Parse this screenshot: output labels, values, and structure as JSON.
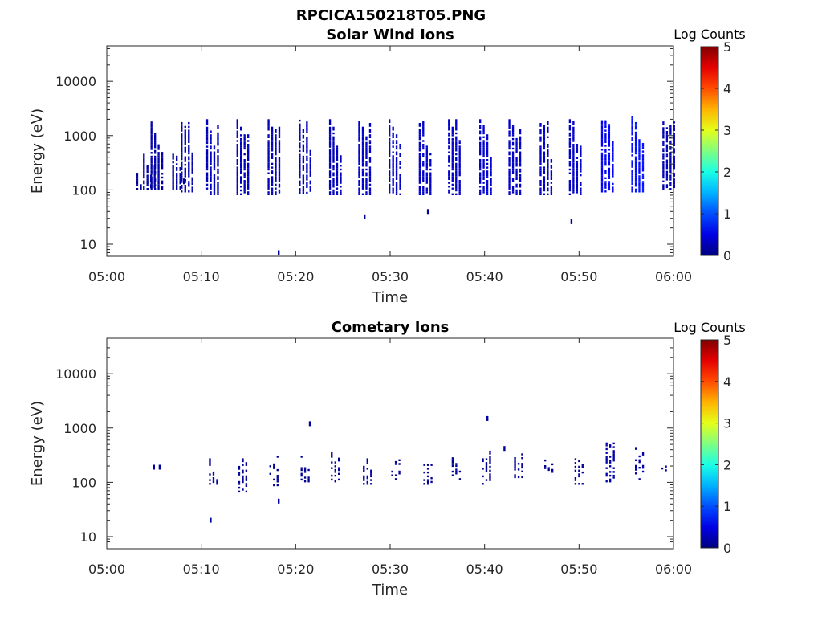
{
  "figure_title": "RPCICA150218T05.PNG",
  "chart_data": [
    {
      "type": "heatmap",
      "title": "Solar Wind Ions",
      "xlabel": "Time",
      "ylabel": "Energy (eV)",
      "x_ticks": [
        "05:00",
        "05:10",
        "05:20",
        "05:30",
        "05:40",
        "05:50",
        "06:00"
      ],
      "xlim_minutes": [
        0,
        60
      ],
      "y_scale": "log",
      "y_ticks": [
        "10",
        "100",
        "1000",
        "10000"
      ],
      "ylim": [
        6,
        45000
      ],
      "colorbar": {
        "label": "Log Counts",
        "ticks": [
          "0",
          "1",
          "2",
          "3",
          "4",
          "5"
        ],
        "range": [
          0,
          5
        ],
        "colormap": "jet"
      },
      "scan_blocks": [
        {
          "t": 3.8,
          "emin": 100,
          "emax": 220,
          "level": 0.1
        },
        {
          "t": 4.5,
          "emin": 100,
          "emax": 450,
          "level": 0.15
        },
        {
          "t": 5.3,
          "emin": 100,
          "emax": 1700,
          "level": 0.2
        },
        {
          "t": 7.6,
          "emin": 100,
          "emax": 450,
          "level": 0.15
        },
        {
          "t": 8.5,
          "emin": 90,
          "emax": 1800,
          "level": 0.2
        },
        {
          "t": 11.2,
          "emin": 80,
          "emax": 2000,
          "level": 0.3
        },
        {
          "t": 14.4,
          "emin": 80,
          "emax": 1900,
          "level": 0.3
        },
        {
          "t": 17.7,
          "emin": 80,
          "emax": 1900,
          "level": 0.3
        },
        {
          "t": 21.0,
          "emin": 85,
          "emax": 1900,
          "level": 0.3
        },
        {
          "t": 24.2,
          "emin": 80,
          "emax": 1900,
          "level": 0.3
        },
        {
          "t": 27.3,
          "emin": 80,
          "emax": 1800,
          "level": 0.35
        },
        {
          "t": 30.5,
          "emin": 80,
          "emax": 1900,
          "level": 0.35
        },
        {
          "t": 33.7,
          "emin": 80,
          "emax": 1900,
          "level": 0.35
        },
        {
          "t": 36.8,
          "emin": 80,
          "emax": 1900,
          "level": 0.35
        },
        {
          "t": 40.1,
          "emin": 80,
          "emax": 2000,
          "level": 0.4
        },
        {
          "t": 43.2,
          "emin": 80,
          "emax": 1900,
          "level": 0.35
        },
        {
          "t": 46.5,
          "emin": 80,
          "emax": 1900,
          "level": 0.35
        },
        {
          "t": 49.6,
          "emin": 80,
          "emax": 1900,
          "level": 0.35
        },
        {
          "t": 53.0,
          "emin": 90,
          "emax": 1900,
          "level": 0.6
        },
        {
          "t": 56.2,
          "emin": 90,
          "emax": 2100,
          "level": 0.7
        },
        {
          "t": 59.5,
          "emin": 100,
          "emax": 1800,
          "level": 0.25
        }
      ],
      "isolated_points": [
        {
          "t": 18.2,
          "e": 7
        },
        {
          "t": 27.3,
          "e": 32
        },
        {
          "t": 34.0,
          "e": 40
        },
        {
          "t": 49.2,
          "e": 26
        }
      ]
    },
    {
      "type": "heatmap",
      "title": "Cometary Ions",
      "xlabel": "Time",
      "ylabel": "Energy (eV)",
      "x_ticks": [
        "05:00",
        "05:10",
        "05:20",
        "05:30",
        "05:40",
        "05:50",
        "06:00"
      ],
      "xlim_minutes": [
        0,
        60
      ],
      "y_scale": "log",
      "y_ticks": [
        "10",
        "100",
        "1000",
        "10000"
      ],
      "ylim": [
        6,
        45000
      ],
      "colorbar": {
        "label": "Log Counts",
        "ticks": [
          "0",
          "1",
          "2",
          "3",
          "4",
          "5"
        ],
        "range": [
          0,
          5
        ],
        "colormap": "jet"
      },
      "scan_blocks": [
        {
          "t": 11.3,
          "emin": 90,
          "emax": 320,
          "level": 0.1
        },
        {
          "t": 14.4,
          "emin": 65,
          "emax": 350,
          "level": 0.1
        },
        {
          "t": 17.7,
          "emin": 85,
          "emax": 330,
          "level": 0.1
        },
        {
          "t": 21.0,
          "emin": 100,
          "emax": 350,
          "level": 0.1
        },
        {
          "t": 24.2,
          "emin": 100,
          "emax": 380,
          "level": 0.1
        },
        {
          "t": 27.6,
          "emin": 90,
          "emax": 320,
          "level": 0.15
        },
        {
          "t": 30.6,
          "emin": 110,
          "emax": 320,
          "level": 0.1
        },
        {
          "t": 34.0,
          "emin": 90,
          "emax": 280,
          "level": 0.1
        },
        {
          "t": 37.0,
          "emin": 110,
          "emax": 320,
          "level": 0.1
        },
        {
          "t": 40.2,
          "emin": 90,
          "emax": 380,
          "level": 0.1
        },
        {
          "t": 43.6,
          "emin": 120,
          "emax": 350,
          "level": 0.1
        },
        {
          "t": 46.8,
          "emin": 150,
          "emax": 350,
          "level": 0.1
        },
        {
          "t": 50.0,
          "emin": 90,
          "emax": 340,
          "level": 0.1
        },
        {
          "t": 53.3,
          "emin": 100,
          "emax": 550,
          "level": 0.2
        },
        {
          "t": 56.4,
          "emin": 110,
          "emax": 500,
          "level": 0.2
        },
        {
          "t": 59.2,
          "emin": 160,
          "emax": 240,
          "level": 0.1
        }
      ],
      "isolated_points": [
        {
          "t": 5.0,
          "e": 190
        },
        {
          "t": 5.6,
          "e": 190
        },
        {
          "t": 11.0,
          "e": 20
        },
        {
          "t": 18.2,
          "e": 45
        },
        {
          "t": 21.5,
          "e": 1200
        },
        {
          "t": 40.3,
          "e": 1500
        },
        {
          "t": 42.1,
          "e": 420
        }
      ]
    }
  ]
}
